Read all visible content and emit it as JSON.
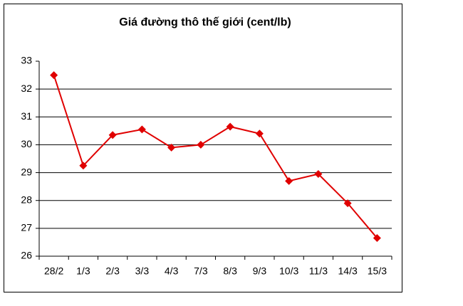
{
  "chart_data": {
    "type": "line",
    "title": "Giá đường thô thế giới (cent/lb)",
    "categories": [
      "28/2",
      "1/3",
      "2/3",
      "3/3",
      "4/3",
      "7/3",
      "8/3",
      "9/3",
      "10/3",
      "11/3",
      "14/3",
      "15/3"
    ],
    "values": [
      32.5,
      29.25,
      30.35,
      30.55,
      29.9,
      30.0,
      30.65,
      30.4,
      28.7,
      28.95,
      27.9,
      26.65
    ],
    "color": "#e00000",
    "ylim": [
      26,
      33
    ],
    "yticks": [
      26,
      27,
      28,
      29,
      30,
      31,
      32,
      33
    ],
    "grid": true
  }
}
